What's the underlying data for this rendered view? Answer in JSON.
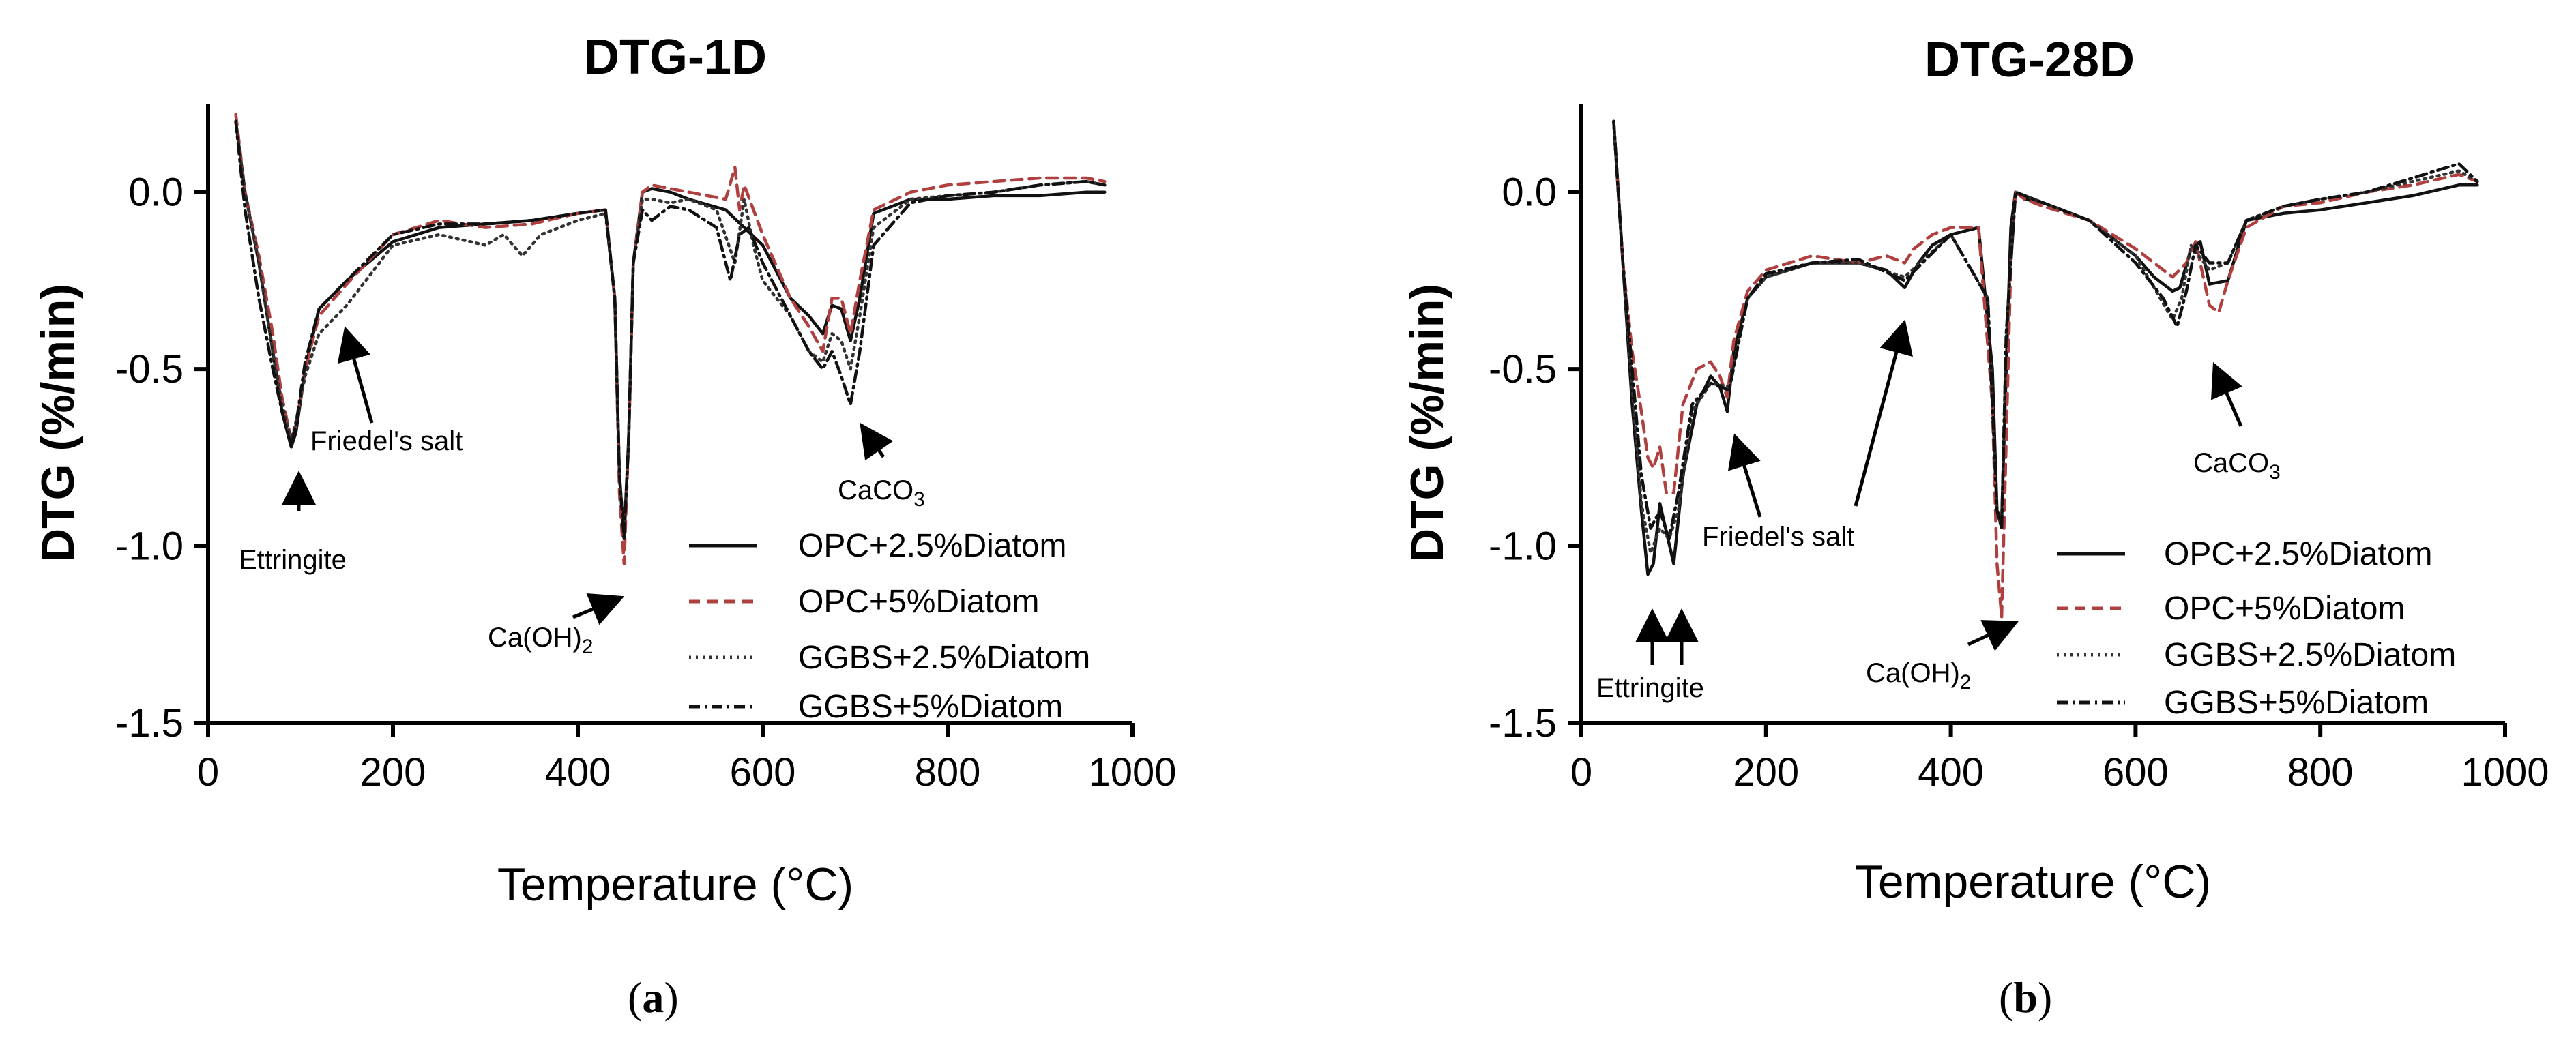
{
  "panels": [
    {
      "title": "DTG-1D",
      "panel_prefix": "(",
      "panel_letter": "a",
      "panel_suffix": ")",
      "annotations": {
        "ettringite": "Ettringite",
        "friedels_salt": "Friedel's salt",
        "caoh2_main": "Ca(OH)",
        "caoh2_sub": "2",
        "caco3_main": "CaCO",
        "caco3_sub": "3"
      }
    },
    {
      "title": "DTG-28D",
      "panel_prefix": "(",
      "panel_letter": "b",
      "panel_suffix": ")",
      "annotations": {
        "ettringite": "Ettringite",
        "friedels_salt": "Friedel's salt",
        "caoh2_main": "Ca(OH)",
        "caoh2_sub": "2",
        "caco3_main": "CaCO",
        "caco3_sub": "3"
      }
    }
  ],
  "chart_data": [
    {
      "type": "line",
      "title": "DTG-1D",
      "xlabel": "Temperature (°C)",
      "ylabel": "DTG (%/min)",
      "xlim": [
        0,
        1000
      ],
      "ylim": [
        -1.5,
        0.25
      ],
      "xticks": [
        0,
        200,
        400,
        600,
        800,
        1000
      ],
      "yticks": [
        0.0,
        -0.5,
        -1.0,
        -1.5
      ],
      "xtick_labels": [
        "0",
        "200",
        "400",
        "600",
        "800",
        "1000"
      ],
      "ytick_labels": [
        "0.0",
        "-0.5",
        "-1.0",
        "-1.5"
      ],
      "legend_position": "bottom-right",
      "series": [
        {
          "name": "OPC+2.5%Diatom",
          "color": "#111111",
          "style": "solid",
          "x": [
            30,
            40,
            55,
            70,
            80,
            90,
            95,
            105,
            120,
            150,
            200,
            250,
            300,
            350,
            400,
            430,
            440,
            445,
            450,
            455,
            460,
            470,
            480,
            500,
            520,
            560,
            600,
            630,
            650,
            665,
            675,
            685,
            695,
            705,
            720,
            760,
            800,
            850,
            900,
            950,
            970
          ],
          "y": [
            0.2,
            0.0,
            -0.2,
            -0.45,
            -0.62,
            -0.72,
            -0.68,
            -0.5,
            -0.33,
            -0.25,
            -0.14,
            -0.1,
            -0.09,
            -0.08,
            -0.06,
            -0.05,
            -0.3,
            -0.8,
            -0.98,
            -0.7,
            -0.2,
            0.0,
            0.01,
            0.0,
            -0.02,
            -0.05,
            -0.15,
            -0.3,
            -0.35,
            -0.4,
            -0.32,
            -0.33,
            -0.42,
            -0.3,
            -0.06,
            -0.02,
            -0.02,
            -0.01,
            -0.01,
            0.0,
            0.0
          ]
        },
        {
          "name": "OPC+5%Diatom",
          "color": "#b04040",
          "style": "dashed",
          "x": [
            30,
            40,
            55,
            70,
            80,
            90,
            95,
            105,
            120,
            150,
            200,
            250,
            300,
            350,
            400,
            430,
            440,
            445,
            450,
            455,
            460,
            470,
            480,
            500,
            520,
            560,
            570,
            575,
            580,
            600,
            630,
            650,
            665,
            675,
            685,
            695,
            705,
            720,
            760,
            800,
            850,
            900,
            950,
            970
          ],
          "y": [
            0.22,
            0.0,
            -0.18,
            -0.4,
            -0.58,
            -0.7,
            -0.66,
            -0.5,
            -0.35,
            -0.26,
            -0.12,
            -0.08,
            -0.1,
            -0.09,
            -0.06,
            -0.05,
            -0.3,
            -0.85,
            -1.05,
            -0.7,
            -0.2,
            0.0,
            0.02,
            0.01,
            0.0,
            -0.02,
            0.07,
            -0.05,
            0.02,
            -0.12,
            -0.3,
            -0.38,
            -0.45,
            -0.3,
            -0.3,
            -0.4,
            -0.25,
            -0.05,
            0.0,
            0.02,
            0.03,
            0.04,
            0.04,
            0.03
          ]
        },
        {
          "name": "GGBS+2.5%Diatom",
          "color": "#333333",
          "style": "dotted",
          "x": [
            30,
            40,
            55,
            70,
            80,
            90,
            95,
            105,
            120,
            150,
            200,
            250,
            300,
            320,
            340,
            360,
            400,
            430,
            440,
            445,
            450,
            455,
            460,
            470,
            480,
            500,
            520,
            550,
            570,
            580,
            590,
            600,
            630,
            650,
            665,
            675,
            685,
            695,
            705,
            720,
            760,
            800,
            850,
            900,
            950,
            970
          ],
          "y": [
            0.2,
            0.0,
            -0.2,
            -0.45,
            -0.6,
            -0.7,
            -0.65,
            -0.52,
            -0.4,
            -0.32,
            -0.15,
            -0.12,
            -0.15,
            -0.12,
            -0.18,
            -0.12,
            -0.08,
            -0.06,
            -0.3,
            -0.8,
            -0.97,
            -0.7,
            -0.2,
            -0.02,
            -0.02,
            -0.03,
            -0.02,
            -0.05,
            -0.2,
            -0.02,
            -0.15,
            -0.25,
            -0.35,
            -0.45,
            -0.48,
            -0.4,
            -0.42,
            -0.5,
            -0.35,
            -0.1,
            -0.02,
            -0.01,
            0.0,
            0.02,
            0.03,
            0.02
          ]
        },
        {
          "name": "GGBS+5%Diatom",
          "color": "#111111",
          "style": "dashdot",
          "x": [
            30,
            40,
            55,
            70,
            80,
            90,
            95,
            105,
            120,
            150,
            200,
            250,
            300,
            350,
            400,
            430,
            440,
            445,
            450,
            455,
            460,
            470,
            480,
            500,
            520,
            550,
            565,
            575,
            585,
            600,
            630,
            650,
            665,
            675,
            685,
            695,
            705,
            720,
            760,
            800,
            850,
            900,
            950,
            970
          ],
          "y": [
            0.2,
            -0.05,
            -0.3,
            -0.5,
            -0.62,
            -0.72,
            -0.66,
            -0.48,
            -0.33,
            -0.25,
            -0.12,
            -0.09,
            -0.09,
            -0.08,
            -0.06,
            -0.05,
            -0.3,
            -0.8,
            -0.98,
            -0.7,
            -0.2,
            -0.05,
            -0.08,
            -0.04,
            -0.05,
            -0.1,
            -0.25,
            -0.12,
            -0.1,
            -0.2,
            -0.35,
            -0.45,
            -0.5,
            -0.45,
            -0.52,
            -0.6,
            -0.45,
            -0.15,
            -0.03,
            -0.01,
            0.0,
            0.02,
            0.03,
            0.02
          ]
        }
      ]
    },
    {
      "type": "line",
      "title": "DTG-28D",
      "xlabel": "Temperature (°C)",
      "ylabel": "DTG (%/min)",
      "xlim": [
        0,
        1000
      ],
      "ylim": [
        -1.5,
        0.25
      ],
      "xticks": [
        0,
        200,
        400,
        600,
        800,
        1000
      ],
      "yticks": [
        0.0,
        -0.5,
        -1.0,
        -1.5
      ],
      "xtick_labels": [
        "0",
        "200",
        "400",
        "600",
        "800",
        "1000"
      ],
      "ytick_labels": [
        "0.0",
        "-0.5",
        "-1.0",
        "-1.5"
      ],
      "legend_position": "bottom-right",
      "series": [
        {
          "name": "OPC+2.5%Diatom",
          "color": "#111111",
          "style": "solid",
          "x": [
            35,
            45,
            55,
            65,
            72,
            78,
            85,
            92,
            100,
            110,
            125,
            140,
            150,
            158,
            165,
            180,
            200,
            250,
            300,
            330,
            350,
            365,
            380,
            400,
            430,
            445,
            450,
            455,
            460,
            465,
            470,
            480,
            500,
            550,
            600,
            620,
            640,
            648,
            660,
            670,
            680,
            700,
            720,
            760,
            800,
            850,
            900,
            950,
            970
          ],
          "y": [
            0.2,
            -0.2,
            -0.6,
            -0.9,
            -1.08,
            -1.05,
            -0.88,
            -0.96,
            -1.05,
            -0.8,
            -0.6,
            -0.52,
            -0.55,
            -0.62,
            -0.45,
            -0.3,
            -0.24,
            -0.2,
            -0.2,
            -0.22,
            -0.27,
            -0.2,
            -0.15,
            -0.12,
            -0.1,
            -0.5,
            -0.9,
            -0.93,
            -0.5,
            -0.1,
            0.0,
            -0.02,
            -0.03,
            -0.08,
            -0.18,
            -0.24,
            -0.28,
            -0.27,
            -0.16,
            -0.14,
            -0.26,
            -0.25,
            -0.08,
            -0.06,
            -0.05,
            -0.03,
            -0.01,
            0.02,
            0.02
          ]
        },
        {
          "name": "OPC+5%Diatom",
          "color": "#b04040",
          "style": "dashed",
          "x": [
            35,
            45,
            55,
            65,
            72,
            78,
            85,
            92,
            100,
            110,
            125,
            140,
            150,
            158,
            165,
            180,
            200,
            250,
            300,
            330,
            350,
            360,
            380,
            400,
            430,
            445,
            450,
            455,
            460,
            465,
            470,
            480,
            500,
            550,
            600,
            620,
            640,
            655,
            665,
            680,
            690,
            700,
            720,
            760,
            800,
            850,
            900,
            950,
            970
          ],
          "y": [
            0.2,
            -0.2,
            -0.45,
            -0.62,
            -0.75,
            -0.78,
            -0.72,
            -0.85,
            -0.85,
            -0.6,
            -0.5,
            -0.48,
            -0.52,
            -0.58,
            -0.42,
            -0.28,
            -0.22,
            -0.18,
            -0.2,
            -0.18,
            -0.2,
            -0.16,
            -0.12,
            -0.1,
            -0.1,
            -0.6,
            -1.05,
            -1.2,
            -0.7,
            -0.2,
            0.0,
            -0.02,
            -0.04,
            -0.08,
            -0.16,
            -0.2,
            -0.24,
            -0.2,
            -0.14,
            -0.32,
            -0.34,
            -0.25,
            -0.1,
            -0.04,
            -0.03,
            0.0,
            0.02,
            0.05,
            0.03
          ]
        },
        {
          "name": "GGBS+2.5%Diatom",
          "color": "#333333",
          "style": "dotted",
          "x": [
            35,
            45,
            55,
            65,
            75,
            85,
            95,
            105,
            120,
            140,
            160,
            180,
            200,
            250,
            300,
            350,
            400,
            440,
            450,
            455,
            460,
            470,
            500,
            550,
            600,
            640,
            650,
            660,
            680,
            700,
            720,
            760,
            800,
            850,
            900,
            950,
            970
          ],
          "y": [
            0.2,
            -0.2,
            -0.55,
            -0.88,
            -1.02,
            -0.95,
            -0.98,
            -0.9,
            -0.62,
            -0.54,
            -0.55,
            -0.3,
            -0.24,
            -0.2,
            -0.2,
            -0.24,
            -0.12,
            -0.3,
            -0.9,
            -0.95,
            -0.4,
            0.0,
            -0.03,
            -0.08,
            -0.18,
            -0.36,
            -0.3,
            -0.15,
            -0.22,
            -0.2,
            -0.08,
            -0.04,
            -0.02,
            0.0,
            0.03,
            0.06,
            0.03
          ]
        },
        {
          "name": "GGBS+5%Diatom",
          "color": "#111111",
          "style": "dashdot",
          "x": [
            35,
            45,
            55,
            65,
            75,
            85,
            95,
            105,
            120,
            140,
            160,
            180,
            200,
            250,
            300,
            350,
            400,
            440,
            450,
            455,
            460,
            470,
            500,
            550,
            600,
            630,
            645,
            655,
            665,
            680,
            700,
            720,
            760,
            800,
            850,
            900,
            950,
            970
          ],
          "y": [
            0.2,
            -0.2,
            -0.5,
            -0.8,
            -0.95,
            -0.9,
            -0.98,
            -0.85,
            -0.6,
            -0.54,
            -0.56,
            -0.3,
            -0.23,
            -0.2,
            -0.19,
            -0.25,
            -0.12,
            -0.3,
            -0.9,
            -0.95,
            -0.4,
            0.0,
            -0.03,
            -0.08,
            -0.2,
            -0.3,
            -0.38,
            -0.28,
            -0.15,
            -0.2,
            -0.2,
            -0.08,
            -0.04,
            -0.02,
            0.0,
            0.04,
            0.08,
            0.03
          ]
        }
      ]
    }
  ]
}
